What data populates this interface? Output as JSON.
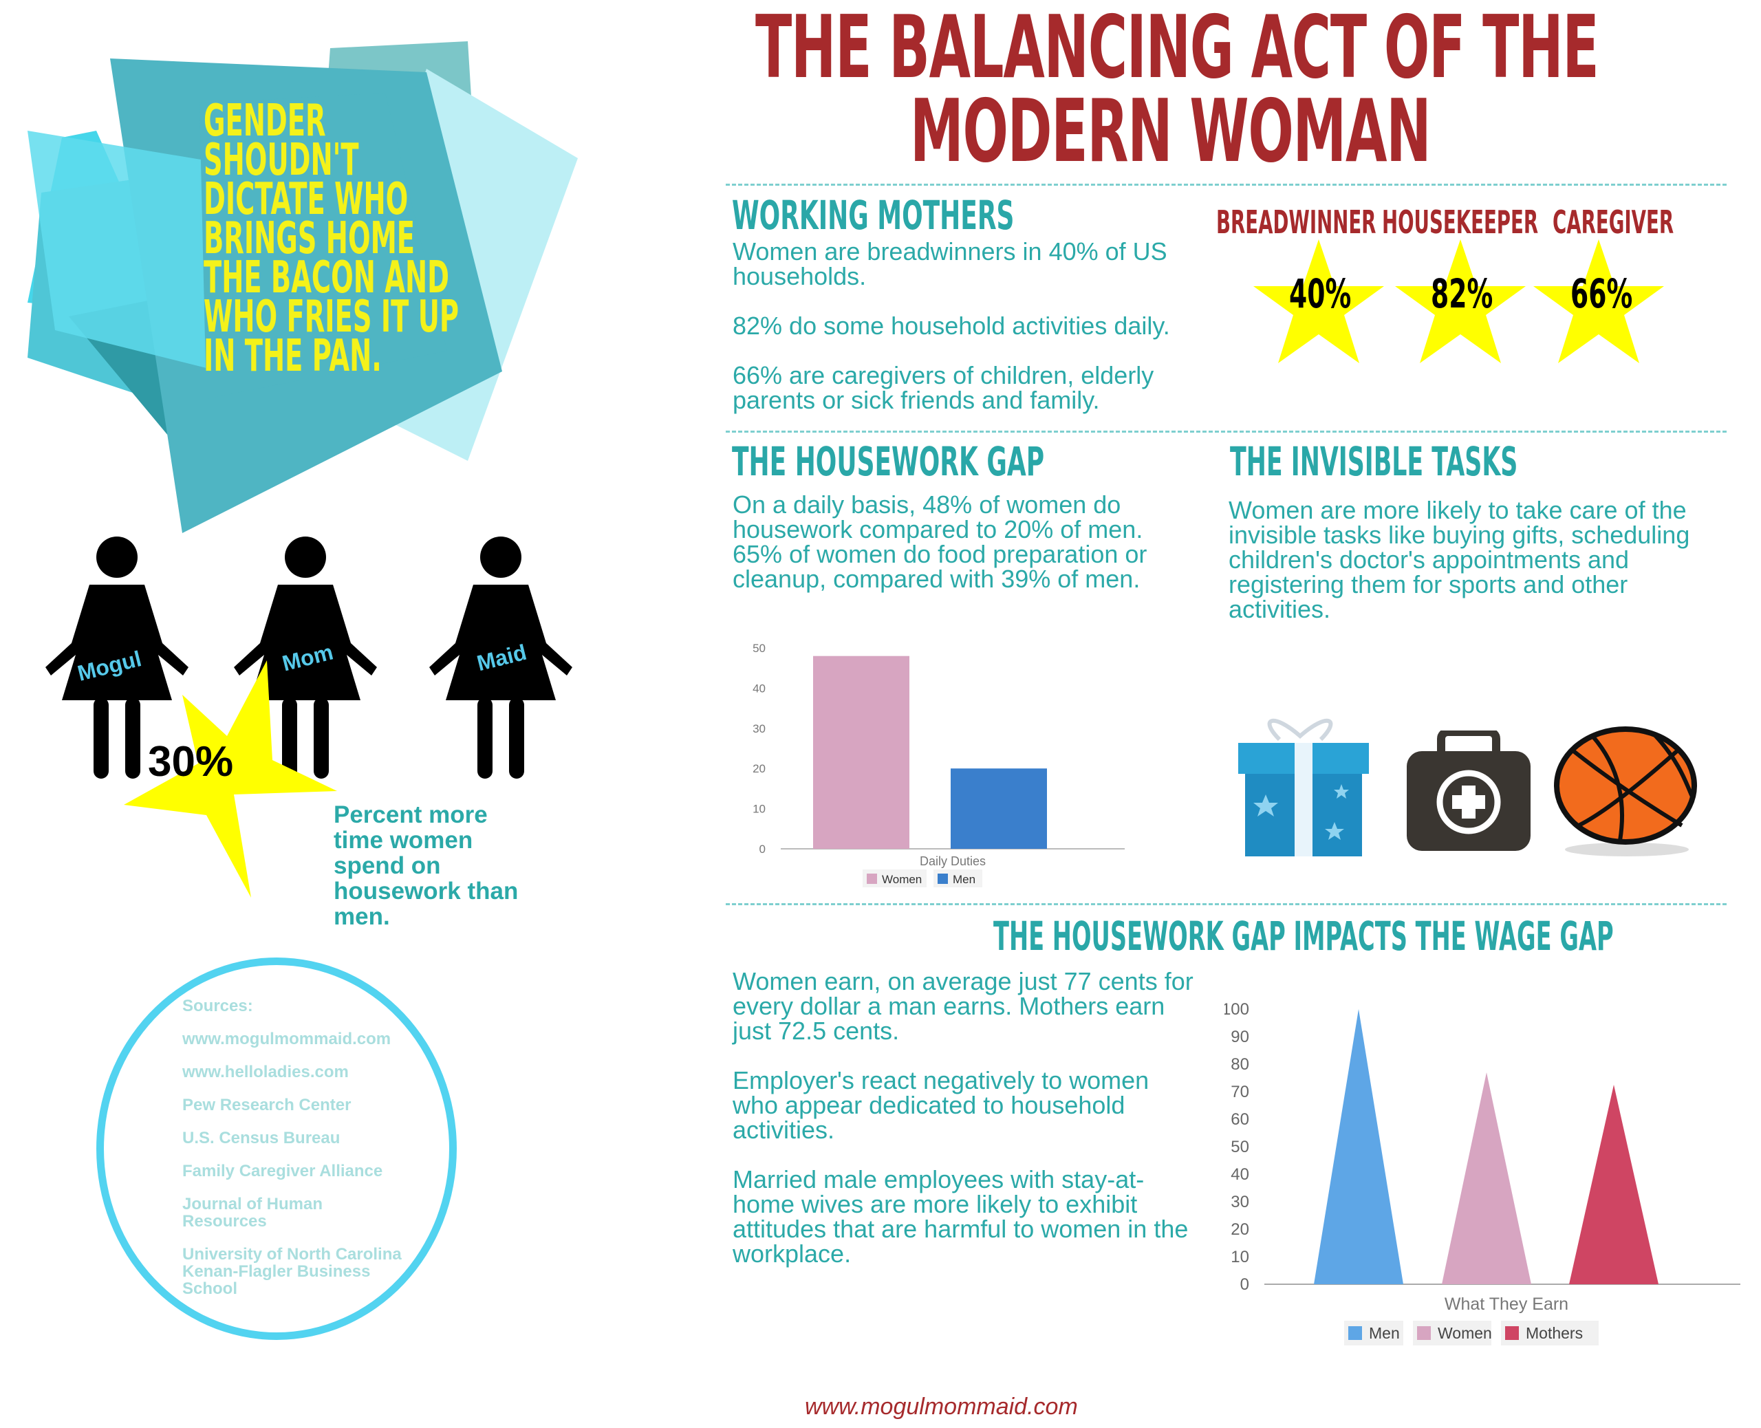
{
  "title": {
    "line1": "THE BALANCING ACT OF THE",
    "line2": "MODERN WOMAN"
  },
  "quote": [
    "GENDER",
    "SHOUDN'T",
    "DICTATE WHO",
    "BRINGS HOME",
    "THE BACON AND",
    "WHO FRIES IT UP",
    "IN THE PAN."
  ],
  "figures": [
    {
      "label": "Mogul"
    },
    {
      "label": "Mom"
    },
    {
      "label": "Maid"
    }
  ],
  "percent_more": {
    "value": "30%",
    "text": [
      "Percent more",
      "time women",
      "spend on",
      "housework than",
      "men."
    ]
  },
  "sources": {
    "heading": "Sources:",
    "items": [
      "www.mogulmommaid.com",
      "www.helloladies.com",
      "Pew Research Center",
      "U.S. Census Bureau",
      "Family Caregiver Alliance",
      "Journal of Human|Resources",
      "University of North Carolina|Kenan-Flagler Business|School"
    ]
  },
  "working_mothers": {
    "heading": "WORKING MOTHERS",
    "paragraphs": [
      [
        "Women are breadwinners in 40% of US",
        "households."
      ],
      [
        "82% do some household activities daily."
      ],
      [
        "66% are caregivers of children, elderly",
        "parents or sick friends and family."
      ]
    ]
  },
  "roles": [
    {
      "label": "BREADWINNER",
      "value": "40%"
    },
    {
      "label": "HOUSEKEEPER",
      "value": "82%"
    },
    {
      "label": "CAREGIVER",
      "value": "66%"
    }
  ],
  "housework_gap": {
    "heading": "THE HOUSEWORK GAP",
    "lines": [
      "On a daily basis, 48% of women do",
      "housework compared to 20% of men.",
      "65% of women do food preparation or",
      "cleanup, compared with 39%  of men."
    ]
  },
  "invisible_tasks": {
    "heading": "THE INVISIBLE TASKS",
    "lines": [
      "Women are more likely to take care of the",
      "invisible tasks like buying gifts, scheduling",
      "children's doctor's appointments and",
      "registering them for sports and other",
      "activities."
    ],
    "icons": [
      "gift-icon",
      "medical-kit-icon",
      "basketball-icon"
    ]
  },
  "wage_gap": {
    "heading": "THE HOUSEWORK GAP IMPACTS THE WAGE GAP",
    "paragraphs": [
      [
        "Women earn, on average just 77 cents for",
        "every dollar a man earns. Mothers earn",
        "just 72.5 cents."
      ],
      [
        "Employer's react negatively to women",
        "who appear dedicated to household",
        "activities."
      ],
      [
        "Married male employees with stay-at-",
        "home wives are more likely to exhibit",
        "attitudes that are harmful to women in the",
        "workplace."
      ]
    ]
  },
  "footer": {
    "url": "www.mogulmommaid.com"
  },
  "colors": {
    "title_red": "#a62a2c",
    "teal": "#2aa7a8",
    "star_yellow": "#ffff00",
    "quote_yellow": "#f4f21a",
    "women_pink": "#d7a5c1",
    "men_blue": "#3a7fcc",
    "mothers_red": "#cf4563",
    "men_light_blue": "#5ea6e6"
  },
  "chart_data": [
    {
      "type": "bar",
      "categories": [
        "Daily Duties"
      ],
      "xlabel": "Daily Duties",
      "ylim": [
        0,
        50
      ],
      "yticks": [
        0,
        10,
        20,
        30,
        40,
        50
      ],
      "grid": false,
      "legend": "bottom",
      "series": [
        {
          "name": "Women",
          "values": [
            48
          ],
          "color": "#d7a5c1"
        },
        {
          "name": "Men",
          "values": [
            20
          ],
          "color": "#3a7fcc"
        }
      ]
    },
    {
      "type": "bar",
      "categories": [
        "What They Earn"
      ],
      "xlabel": "What They Earn",
      "ylim": [
        0,
        100
      ],
      "yticks": [
        0,
        10,
        20,
        30,
        40,
        50,
        60,
        70,
        80,
        90,
        100
      ],
      "grid": false,
      "legend": "bottom",
      "series": [
        {
          "name": "Men",
          "values": [
            100
          ],
          "color": "#5ea6e6"
        },
        {
          "name": "Women",
          "values": [
            77
          ],
          "color": "#d7a5c1"
        },
        {
          "name": "Mothers",
          "values": [
            72.5
          ],
          "color": "#cf4563"
        }
      ]
    }
  ]
}
